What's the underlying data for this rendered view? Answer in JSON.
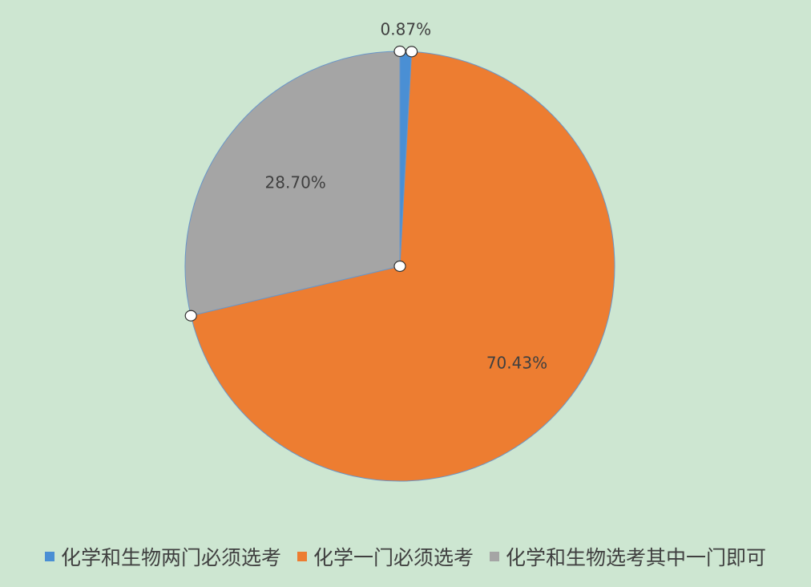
{
  "chart_data": {
    "type": "pie",
    "start_angle_deg": 0,
    "direction": "clockwise",
    "slices": [
      {
        "label": "化学和生物两门必须选考",
        "value": 0.87,
        "display": "0.87%",
        "color": "#4a8fd4"
      },
      {
        "label": "化学一门必须选考",
        "value": 70.43,
        "display": "70.43%",
        "color": "#ed7d31"
      },
      {
        "label": "化学和生物选考其中一门即可",
        "value": 28.7,
        "display": "28.70%",
        "color": "#a5a5a5"
      }
    ],
    "legend_position": "bottom"
  }
}
